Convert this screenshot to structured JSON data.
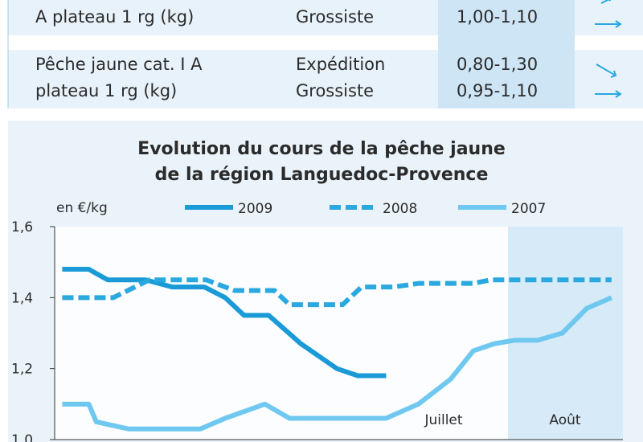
{
  "table": {
    "rows": [
      {
        "product": "A plateau 1 rg (kg)",
        "stage": "Grossiste",
        "price": "1,00-1,10"
      },
      {
        "product": [
          "Pêche jaune cat. I A",
          "plateau 1 rg (kg)"
        ],
        "stages": [
          "Expédition",
          "Grossiste"
        ],
        "prices": [
          "0,80-1,30",
          "0,95-1,10"
        ]
      }
    ]
  },
  "chart_data": {
    "type": "line",
    "title": [
      "Evolution du cours de la pêche jaune",
      "de la région Languedoc-Provence"
    ],
    "y_label": "en €/kg",
    "annotations": [
      "Juillet",
      "Août"
    ],
    "xlim": [
      0,
      30
    ],
    "ylim": [
      1.0,
      1.6
    ],
    "yticks": [
      {
        "value": 1.0,
        "label": "1,0"
      },
      {
        "value": 1.2,
        "label": "1,2"
      },
      {
        "value": 1.4,
        "label": "1,4"
      },
      {
        "value": 1.6,
        "label": "1,6"
      }
    ],
    "series": [
      {
        "name": "2009",
        "color": "#1a9ad6",
        "dashed": false,
        "x": [
          0.4,
          1.8,
          2.8,
          4.8,
          6.2,
          7.9,
          9,
          10,
          11.3,
          13,
          14.9,
          16,
          17.5
        ],
        "values": [
          1.48,
          1.48,
          1.45,
          1.45,
          1.43,
          1.43,
          1.4,
          1.35,
          1.35,
          1.27,
          1.2,
          1.18,
          1.18
        ]
      },
      {
        "name": "2008",
        "color": "#2aa8e0",
        "dashed": true,
        "x": [
          0.4,
          3.1,
          5,
          8,
          9.5,
          11.6,
          12.4,
          15.2,
          16.2,
          17.9,
          19.2,
          22.1,
          23,
          29.4
        ],
        "values": [
          1.4,
          1.4,
          1.45,
          1.45,
          1.42,
          1.42,
          1.38,
          1.38,
          1.43,
          1.43,
          1.44,
          1.44,
          1.45,
          1.45
        ]
      },
      {
        "name": "2007",
        "color": "#6fc8ef",
        "dashed": false,
        "x": [
          0.4,
          1.8,
          2.2,
          3.9,
          7.7,
          9,
          11.1,
          12.4,
          17.5,
          19.2,
          20.9,
          22.1,
          23.2,
          24.3,
          25.5,
          26.8,
          28.1,
          29.4
        ],
        "values": [
          1.1,
          1.1,
          1.05,
          1.03,
          1.03,
          1.06,
          1.1,
          1.06,
          1.06,
          1.1,
          1.17,
          1.25,
          1.27,
          1.28,
          1.28,
          1.3,
          1.37,
          1.4
        ]
      }
    ]
  }
}
